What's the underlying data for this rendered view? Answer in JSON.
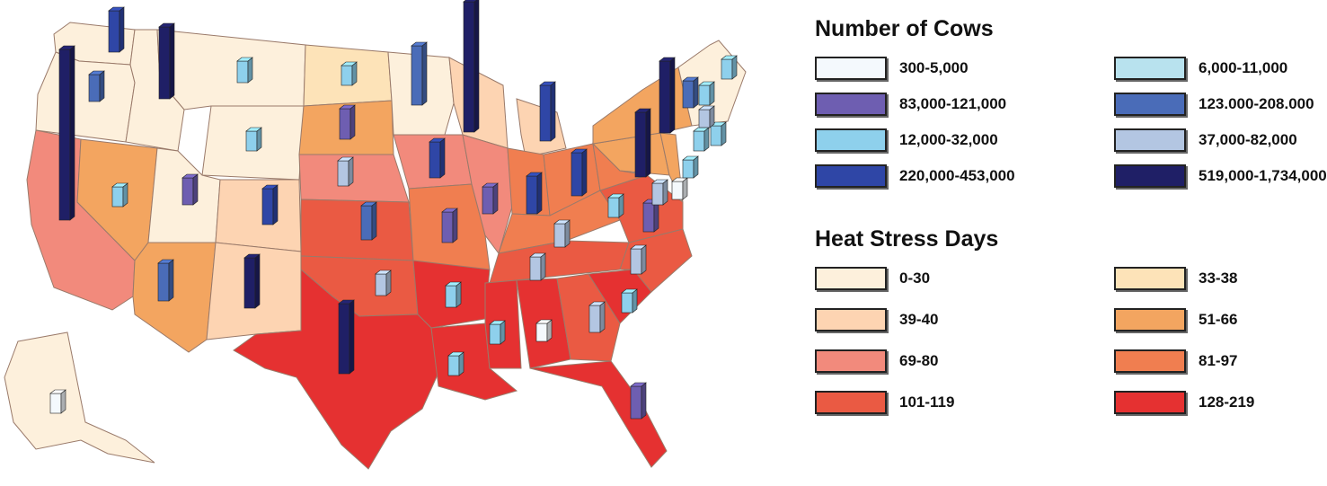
{
  "colors": {
    "heat_0_30": "#fdf0dc",
    "heat_33_38": "#fde3b8",
    "heat_39_40": "#fdd4b2",
    "heat_51_66": "#f3a560",
    "heat_69_80": "#f28a7c",
    "heat_81_97": "#f07e50",
    "heat_101_119": "#ea5a43",
    "heat_128_219": "#e53131",
    "state_border": "#9a7a6a"
  },
  "legend_cows": {
    "title": "Number of Cows",
    "items": [
      {
        "label": "300-5,000",
        "color": "#f4f9fd"
      },
      {
        "label": "6,000-11,000",
        "color": "#b8e2ee"
      },
      {
        "label": "83,000-121,000",
        "color": "#6e5eb1"
      },
      {
        "label": "123.000-208.000",
        "color": "#4a6cb8"
      },
      {
        "label": "12,000-32,000",
        "color": "#8ed0ec"
      },
      {
        "label": "37,000-82,000",
        "color": "#b3c6e2"
      },
      {
        "label": "220,000-453,000",
        "color": "#2f46a6"
      },
      {
        "label": "519,000-1,734,000",
        "color": "#1f1f66"
      }
    ]
  },
  "legend_heat": {
    "title": "Heat Stress Days",
    "items": [
      {
        "label": "0-30",
        "color": "#fdf0dc"
      },
      {
        "label": "33-38",
        "color": "#fde3b8"
      },
      {
        "label": "39-40",
        "color": "#fdd4b2"
      },
      {
        "label": "51-66",
        "color": "#f3a560"
      },
      {
        "label": "69-80",
        "color": "#f28a7c"
      },
      {
        "label": "81-97",
        "color": "#f07e50"
      },
      {
        "label": "101-119",
        "color": "#ea5a43"
      },
      {
        "label": "128-219",
        "color": "#e53131"
      }
    ]
  }
}
